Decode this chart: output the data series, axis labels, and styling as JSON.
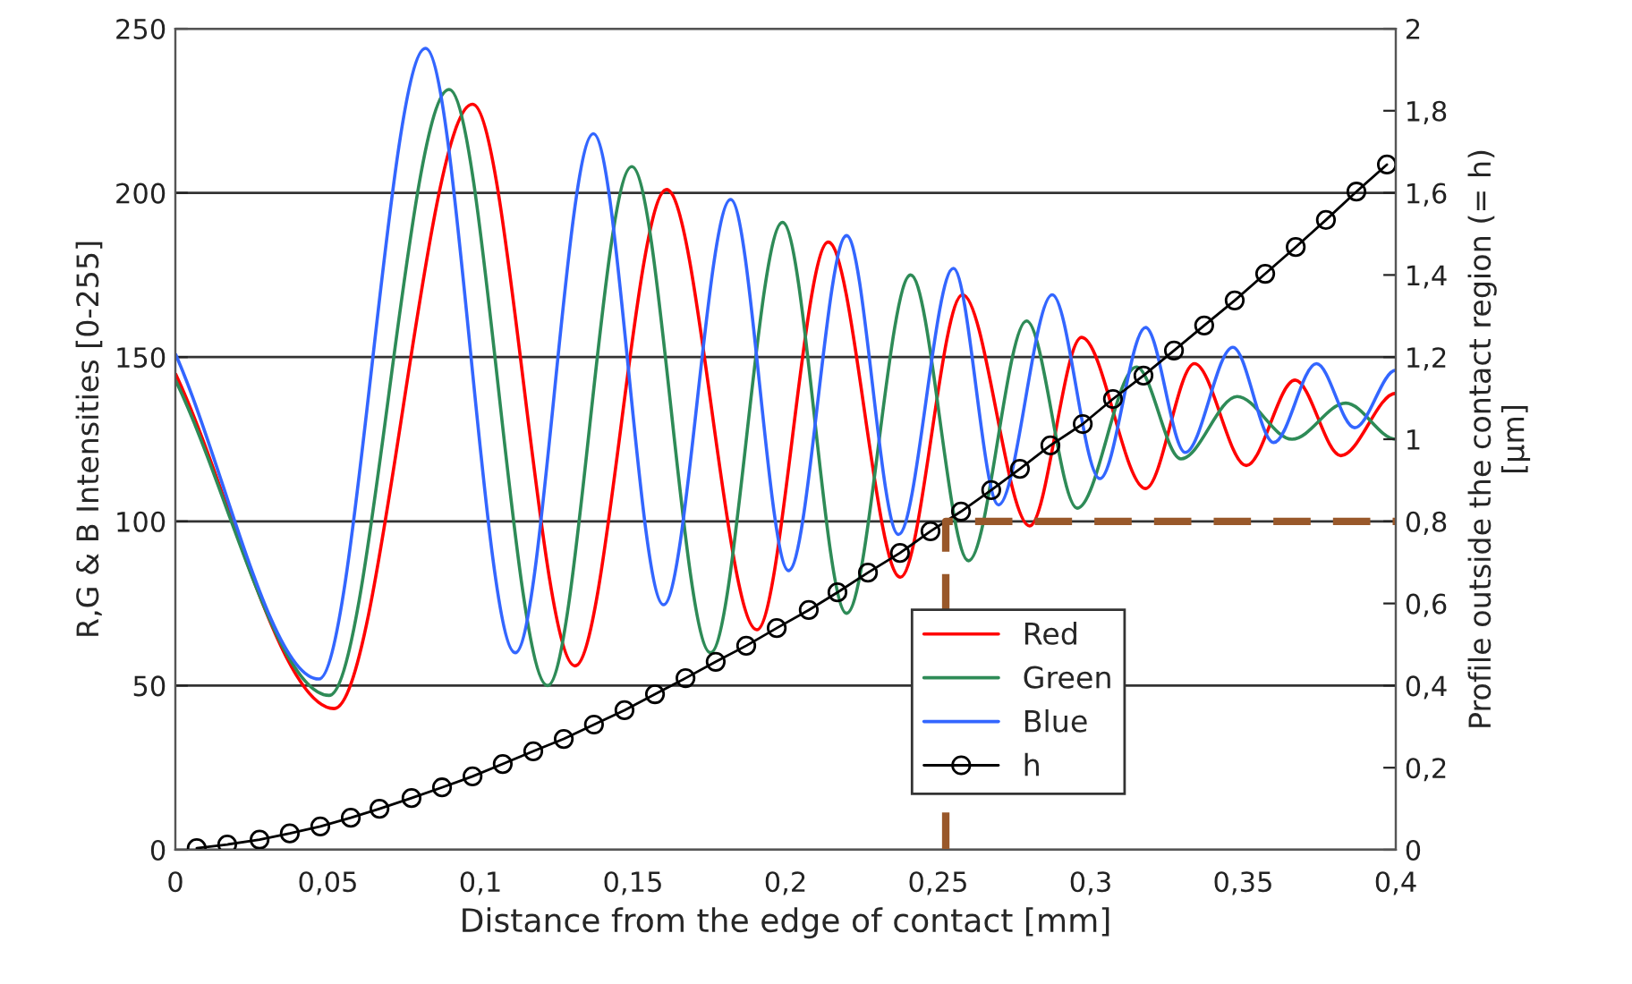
{
  "chart_data": {
    "type": "line",
    "xlabel": "Distance from the edge of contact [mm]",
    "ylabel": "R,G & B Intensities [0-255]",
    "y2label": "Profile outside the contact region (= h)\n[µm]",
    "xlim": [
      0,
      0.4
    ],
    "xticks": [
      0,
      {
        "value": 0.05,
        "label": "0,05"
      },
      {
        "value": 0.1,
        "label": "0,1"
      },
      {
        "value": 0.15,
        "label": "0,15"
      },
      {
        "value": 0.2,
        "label": "0,2"
      },
      {
        "value": 0.25,
        "label": "0,25"
      },
      {
        "value": 0.3,
        "label": "0,3"
      },
      {
        "value": 0.35,
        "label": "0,35"
      },
      {
        "value": 0.4,
        "label": "0,4"
      }
    ],
    "ylim": [
      0,
      250
    ],
    "yticks": [
      0,
      50,
      100,
      150,
      200,
      250
    ],
    "y2lim": [
      0,
      2
    ],
    "y2ticks": [
      0,
      {
        "value": 0.2,
        "label": "0,2"
      },
      {
        "value": 0.4,
        "label": "0,4"
      },
      {
        "value": 0.6,
        "label": "0,6"
      },
      {
        "value": 0.8,
        "label": "0,8"
      },
      {
        "value": 1,
        "label": "1"
      },
      {
        "value": 1.2,
        "label": "1,2"
      },
      {
        "value": 1.4,
        "label": "1,4"
      },
      {
        "value": 1.6,
        "label": "1,6"
      },
      {
        "value": 1.8,
        "label": "1,8"
      },
      {
        "value": 2,
        "label": "2"
      }
    ],
    "grid": "y",
    "legend": "bottom right",
    "marker": "none",
    "line_style": "solid",
    "series": [
      {
        "name": "Red",
        "color": "#ff0000",
        "x": [
          0,
          0.052,
          0.0974,
          0.131,
          0.161,
          0.1906,
          0.214,
          0.2376,
          0.258,
          0.28,
          0.297,
          0.318,
          0.334,
          0.351,
          0.367,
          0.382,
          0.4
        ],
        "values": [
          145,
          43,
          227,
          56,
          201,
          67,
          185,
          83,
          169,
          98.6,
          156,
          110,
          148,
          117,
          143,
          120,
          139
        ]
      },
      {
        "name": "Green",
        "color": "#2e8b57",
        "x": [
          0,
          0.0504,
          0.0897,
          0.122,
          0.1496,
          0.1754,
          0.199,
          0.22,
          0.241,
          0.26,
          0.279,
          0.2956,
          0.315,
          0.3296,
          0.348,
          0.366,
          0.3836,
          0.4
        ],
        "values": [
          143,
          47,
          231.5,
          50,
          208,
          60,
          191,
          72,
          175,
          88,
          161,
          104,
          147,
          119,
          138,
          125,
          136,
          125
        ]
      },
      {
        "name": "Blue",
        "color": "#3366ff",
        "x": [
          0,
          0.047,
          0.082,
          0.1114,
          0.137,
          0.16,
          0.182,
          0.201,
          0.22,
          0.237,
          0.255,
          0.2698,
          0.2874,
          0.303,
          0.318,
          0.331,
          0.3466,
          0.36,
          0.374,
          0.3865,
          0.4
        ],
        "values": [
          151,
          52,
          244,
          60,
          218,
          74.6,
          198,
          85,
          187,
          96,
          177,
          105,
          169,
          113,
          159,
          121,
          153,
          124,
          148,
          128.5,
          146
        ]
      },
      {
        "name": "h",
        "color": "#000000",
        "axis": "y2",
        "marker": "circle",
        "x": [
          0.007,
          0.017,
          0.0276,
          0.0375,
          0.0475,
          0.0575,
          0.0669,
          0.0774,
          0.0874,
          0.0974,
          0.1073,
          0.1173,
          0.1273,
          0.1372,
          0.1472,
          0.1572,
          0.1672,
          0.1771,
          0.1871,
          0.1971,
          0.2076,
          0.217,
          0.227,
          0.2375,
          0.2475,
          0.2575,
          0.2674,
          0.2768,
          0.2868,
          0.2974,
          0.3073,
          0.3173,
          0.3273,
          0.3372,
          0.3472,
          0.3572,
          0.3672,
          0.3771,
          0.3871,
          0.3971
        ],
        "values": [
          0.004,
          0.013,
          0.025,
          0.04,
          0.057,
          0.078,
          0.1,
          0.126,
          0.152,
          0.179,
          0.209,
          0.24,
          0.27,
          0.305,
          0.34,
          0.379,
          0.418,
          0.458,
          0.497,
          0.54,
          0.584,
          0.627,
          0.675,
          0.723,
          0.776,
          0.824,
          0.876,
          0.928,
          0.985,
          1.037,
          1.098,
          1.155,
          1.216,
          1.277,
          1.338,
          1.403,
          1.468,
          1.534,
          1.603,
          1.669
        ]
      },
      {
        "color": "#99582a",
        "axis": "y2",
        "line_style": "dashed",
        "x": [
          0.2525,
          0.2525,
          0.4
        ],
        "values": [
          0,
          0.8,
          0.8
        ]
      }
    ]
  }
}
